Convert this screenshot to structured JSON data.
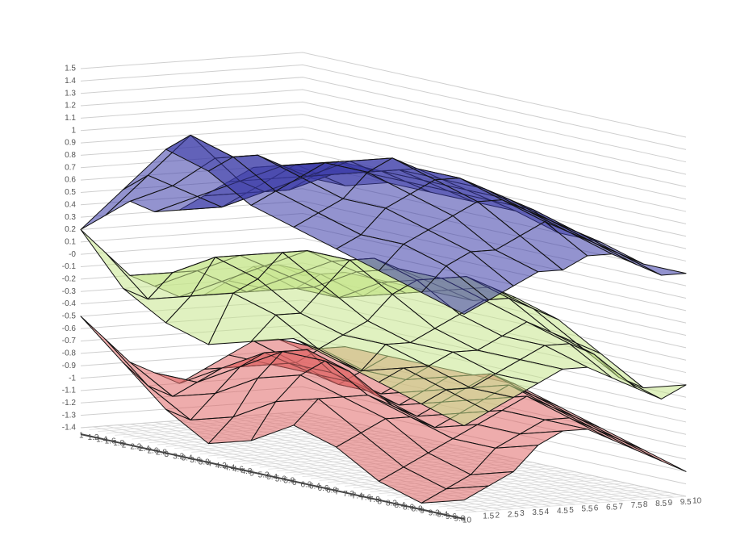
{
  "chart_data": {
    "type": "surface3d",
    "x": [
      1,
      2,
      3,
      4,
      5,
      6,
      7,
      8,
      9,
      10
    ],
    "y": [
      1,
      2,
      3,
      4,
      5,
      6,
      7,
      8,
      9,
      10
    ],
    "xlim": [
      1,
      10
    ],
    "ylim": [
      1,
      10
    ],
    "zlim": [
      -1.4,
      1.5
    ],
    "xticks": [
      1,
      1.2,
      1.4,
      1.6,
      1.8,
      2,
      2.2,
      2.4,
      2.6,
      2.8,
      3,
      3.2,
      3.4,
      3.6,
      3.8,
      4,
      4.2,
      4.4,
      4.6,
      4.8,
      5,
      5.2,
      5.4,
      5.6,
      5.8,
      6,
      6.2,
      6.4,
      6.6,
      6.8,
      7,
      7.2,
      7.4,
      7.6,
      7.8,
      8,
      8.2,
      8.4,
      8.6,
      8.8,
      9,
      9.2,
      9.4,
      9.6,
      9.8,
      10
    ],
    "yticks": [
      1.5,
      2,
      2.5,
      3,
      3.5,
      4,
      4.5,
      5,
      5.5,
      6,
      6.5,
      7,
      7.5,
      8,
      8.5,
      9,
      9.5,
      10
    ],
    "zticks": [
      -1.4,
      -1.3,
      -1.2,
      -1.1,
      -1,
      -0.9,
      -0.8,
      -0.7,
      -0.6,
      -0.5,
      -0.4,
      -0.3,
      -0.2,
      -0.1,
      {
        "value": 0,
        "label": "-0"
      },
      0.1,
      0.2,
      0.3,
      0.4,
      0.5,
      0.6,
      0.7,
      0.8,
      0.9,
      1,
      1.1,
      1.2,
      1.3,
      1.4,
      1.5
    ],
    "series": [
      {
        "color": "#3a3aa8",
        "z": [
          [
            0.2,
            0.6,
            1.0,
            0.9,
            0.7,
            0.6,
            0.5,
            0.4,
            0.3,
            0.2
          ],
          [
            0.3,
            0.7,
            1.1,
            1.0,
            0.8,
            0.7,
            0.6,
            0.6,
            0.5,
            0.3
          ],
          [
            0.4,
            0.6,
            0.9,
            1.0,
            0.9,
            0.8,
            0.8,
            0.7,
            0.6,
            0.4
          ],
          [
            0.3,
            0.5,
            0.7,
            0.9,
            1.0,
            1.0,
            0.9,
            0.8,
            0.6,
            0.5
          ],
          [
            0.3,
            0.4,
            0.6,
            0.8,
            1.0,
            1.1,
            1.0,
            0.9,
            0.7,
            0.5
          ],
          [
            0.4,
            0.5,
            0.6,
            0.8,
            0.9,
            1.0,
            1.0,
            0.9,
            0.8,
            0.6
          ],
          [
            0.5,
            0.6,
            0.7,
            0.8,
            0.9,
            0.9,
            0.9,
            0.8,
            0.7,
            0.6
          ],
          [
            0.6,
            0.7,
            0.8,
            0.8,
            0.8,
            0.8,
            0.8,
            0.7,
            0.6,
            0.5
          ],
          [
            0.6,
            0.6,
            0.7,
            0.7,
            0.7,
            0.7,
            0.7,
            0.6,
            0.5,
            0.4
          ],
          [
            0.5,
            0.5,
            0.6,
            0.6,
            0.6,
            0.6,
            0.5,
            0.5,
            0.4,
            0.4
          ]
        ]
      },
      {
        "color": "#c6e68c",
        "z": [
          [
            0.2,
            -0.2,
            -0.4,
            -0.5,
            -0.4,
            -0.3,
            -0.4,
            -0.5,
            -0.6,
            -0.7
          ],
          [
            0.0,
            -0.3,
            -0.2,
            -0.1,
            -0.2,
            -0.4,
            -0.5,
            -0.4,
            -0.5,
            -0.6
          ],
          [
            -0.2,
            -0.1,
            0.1,
            0.0,
            -0.2,
            -0.3,
            -0.3,
            -0.4,
            -0.5,
            -0.5
          ],
          [
            -0.3,
            -0.1,
            0.1,
            0.2,
            0.0,
            -0.2,
            -0.3,
            -0.3,
            -0.4,
            -0.4
          ],
          [
            -0.4,
            -0.2,
            0.0,
            0.2,
            0.2,
            0.0,
            -0.2,
            -0.3,
            -0.3,
            -0.3
          ],
          [
            -0.4,
            -0.3,
            -0.1,
            0.1,
            0.2,
            0.1,
            -0.1,
            -0.2,
            -0.2,
            -0.3
          ],
          [
            -0.3,
            -0.3,
            -0.2,
            0.0,
            0.1,
            0.1,
            0.0,
            -0.1,
            -0.2,
            -0.4
          ],
          [
            -0.2,
            -0.3,
            -0.3,
            -0.1,
            0.0,
            0.1,
            0.0,
            -0.2,
            -0.3,
            -0.5
          ],
          [
            -0.2,
            -0.2,
            -0.3,
            -0.2,
            -0.1,
            0.0,
            -0.1,
            -0.3,
            -0.5,
            -0.6
          ],
          [
            -0.3,
            -0.2,
            -0.2,
            -0.2,
            -0.2,
            -0.1,
            -0.2,
            -0.4,
            -0.6,
            -0.5
          ]
        ]
      },
      {
        "color": "#e06868",
        "z": [
          [
            -0.5,
            -0.8,
            -1.1,
            -1.3,
            -1.2,
            -1.0,
            -1.1,
            -1.3,
            -1.4,
            -1.3
          ],
          [
            -0.7,
            -1.0,
            -1.2,
            -1.1,
            -0.9,
            -0.8,
            -1.0,
            -1.2,
            -1.3,
            -1.2
          ],
          [
            -0.9,
            -1.1,
            -1.0,
            -0.8,
            -0.7,
            -0.8,
            -0.9,
            -1.1,
            -1.2,
            -1.1
          ],
          [
            -1.0,
            -1.0,
            -0.8,
            -0.6,
            -0.6,
            -0.8,
            -0.9,
            -1.0,
            -1.0,
            -0.9
          ],
          [
            -1.1,
            -0.9,
            -0.7,
            -0.6,
            -0.7,
            -0.9,
            -1.0,
            -0.9,
            -0.9,
            -0.8
          ],
          [
            -1.0,
            -0.9,
            -0.8,
            -0.8,
            -0.9,
            -1.0,
            -0.9,
            -0.8,
            -0.8,
            -0.8
          ],
          [
            -0.9,
            -0.9,
            -0.9,
            -0.9,
            -1.0,
            -0.9,
            -0.8,
            -0.7,
            -0.8,
            -0.9
          ],
          [
            -0.8,
            -0.9,
            -1.0,
            -1.0,
            -0.9,
            -0.8,
            -0.7,
            -0.8,
            -0.9,
            -1.0
          ],
          [
            -0.8,
            -0.8,
            -0.9,
            -0.9,
            -0.8,
            -0.7,
            -0.8,
            -0.9,
            -1.0,
            -1.1
          ],
          [
            -0.9,
            -0.8,
            -0.8,
            -0.8,
            -0.8,
            -0.8,
            -0.9,
            -1.0,
            -1.1,
            -1.2
          ]
        ]
      }
    ]
  }
}
